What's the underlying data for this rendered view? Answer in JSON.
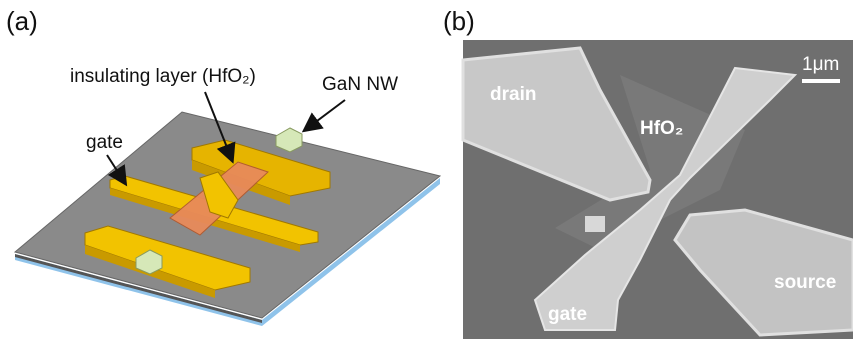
{
  "panel_a": {
    "label": "(a)",
    "annotations": [
      "insulating layer (HfO₂)",
      "GaN NW",
      "gate"
    ]
  },
  "panel_b": {
    "label": "(b)",
    "scale_bar": "1μm",
    "regions": [
      "drain",
      "HfO₂",
      "source",
      "gate"
    ]
  }
}
